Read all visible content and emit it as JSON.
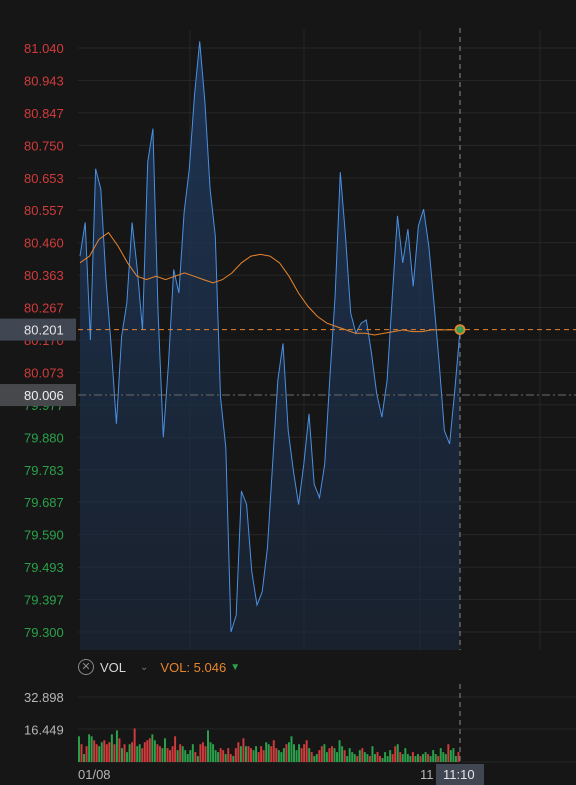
{
  "colors": {
    "background": "#161616",
    "grid": "#262626",
    "price_line": "#4a90e2",
    "avg_line": "#e7862c",
    "up": "#2aa14a",
    "down": "#d13b3b",
    "axis_text": "#b5b5b5"
  },
  "volume_panel": {
    "indicator_name": "VOL",
    "legend_label": "VOL:",
    "legend_value": "5.046",
    "close_icon": "close-circle-icon",
    "chevron_icon": "chevron-down-icon",
    "trend_icon": "triangle-down-icon"
  },
  "chart_data": [
    {
      "type": "line",
      "title": "",
      "price_ticks": [
        "81.040",
        "80.943",
        "80.847",
        "80.750",
        "80.653",
        "80.557",
        "80.460",
        "80.363",
        "80.267",
        "80.170",
        "80.073",
        "79.977",
        "79.880",
        "79.783",
        "79.687",
        "79.590",
        "79.493",
        "79.397",
        "79.300"
      ],
      "ylim": [
        79.3,
        81.04
      ],
      "reference_price": 80.006,
      "last_price": 80.201,
      "grid": true,
      "series": [
        {
          "values": [
            80.42,
            80.52,
            80.17,
            80.68,
            80.62,
            80.35,
            80.15,
            79.92,
            80.18,
            80.28,
            80.52,
            80.38,
            80.2,
            80.7,
            80.8,
            80.25,
            79.88,
            80.1,
            80.38,
            80.31,
            80.55,
            80.68,
            80.9,
            81.06,
            80.88,
            80.62,
            80.48,
            80.0,
            79.85,
            79.3,
            79.35,
            79.72,
            79.68,
            79.48,
            79.38,
            79.42,
            79.55,
            79.8,
            80.05,
            80.16,
            79.9,
            79.78,
            79.68,
            79.8,
            79.95,
            79.74,
            79.7,
            79.8,
            80.06,
            80.3,
            80.67,
            80.48,
            80.25,
            80.19,
            80.22,
            80.23,
            80.13,
            80.01,
            79.94,
            80.05,
            80.3,
            80.54,
            80.4,
            80.5,
            80.33,
            80.51,
            80.56,
            80.45,
            80.28,
            80.1,
            79.9,
            79.86,
            80.02,
            80.2
          ]
        },
        {
          "values": [
            80.4,
            80.42,
            80.47,
            80.49,
            80.45,
            80.4,
            80.36,
            80.35,
            80.36,
            80.35,
            80.36,
            80.37,
            80.36,
            80.35,
            80.34,
            80.35,
            80.37,
            80.4,
            80.42,
            80.425,
            80.42,
            80.4,
            80.36,
            80.31,
            80.27,
            80.24,
            80.22,
            80.21,
            80.2,
            80.19,
            80.19,
            80.185,
            80.19,
            80.195,
            80.2,
            80.195,
            80.195,
            80.2,
            80.2,
            80.2,
            80.2
          ]
        }
      ]
    },
    {
      "type": "bar",
      "title": "",
      "volume_ticks": [
        "32.898",
        "16.449"
      ],
      "ylim": [
        0,
        32.898
      ],
      "x_tick_labels": [
        "01/08",
        "11"
      ],
      "crosshair_time_label": "11:10",
      "series": [
        {
          "values": [
            13,
            9,
            4,
            8,
            14,
            13,
            11,
            9,
            8,
            10,
            11,
            9,
            10,
            14,
            9,
            16,
            12,
            7,
            9,
            5,
            9,
            10,
            17,
            8,
            9,
            7,
            10,
            11,
            12,
            14,
            11,
            9,
            8,
            7,
            12,
            7,
            6,
            8,
            13,
            6,
            9,
            8,
            6,
            4,
            6,
            9,
            5,
            3,
            9,
            10,
            8,
            16,
            10,
            9,
            6,
            5,
            7,
            6,
            4,
            7,
            4,
            3,
            7,
            10,
            8,
            12,
            8,
            8,
            7,
            6,
            8,
            5,
            8,
            6,
            10,
            9,
            8,
            11,
            7,
            6,
            5,
            7,
            9,
            10,
            13,
            9,
            6,
            9,
            7,
            9,
            11,
            7,
            5,
            3,
            4,
            6,
            8,
            9,
            5,
            7,
            8,
            7,
            5,
            11,
            8,
            6,
            3,
            7,
            5,
            4,
            3,
            6,
            7,
            5,
            4,
            3,
            8,
            4,
            5,
            3,
            2,
            5,
            3,
            6,
            4,
            8,
            9,
            5,
            4,
            7,
            4,
            3,
            5,
            3,
            4,
            3,
            4,
            5,
            4,
            3,
            6,
            4,
            3,
            7,
            5,
            4,
            9,
            6,
            7,
            3,
            5
          ],
          "directions": [
            "u",
            "d",
            "u",
            "d",
            "u",
            "u",
            "d",
            "d",
            "u",
            "u",
            "d",
            "d",
            "d",
            "u",
            "d",
            "u",
            "d",
            "u",
            "d",
            "u",
            "u",
            "d",
            "d",
            "u",
            "u",
            "d",
            "d",
            "d",
            "d",
            "u",
            "u",
            "d",
            "d",
            "u",
            "u",
            "d",
            "d",
            "d",
            "d",
            "u",
            "d",
            "u",
            "u",
            "u",
            "u",
            "u",
            "d",
            "u",
            "d",
            "d",
            "d",
            "u",
            "u",
            "u",
            "u",
            "u",
            "d",
            "d",
            "u",
            "d",
            "d",
            "u",
            "d",
            "d",
            "u",
            "d",
            "u",
            "d",
            "d",
            "u",
            "u",
            "d",
            "d",
            "d",
            "u",
            "u",
            "d",
            "d",
            "d",
            "u",
            "u",
            "u",
            "d",
            "u",
            "u",
            "u",
            "u",
            "u",
            "d",
            "d",
            "d",
            "u",
            "d",
            "u",
            "u",
            "d",
            "d",
            "u",
            "u",
            "d",
            "d",
            "u",
            "u",
            "u",
            "u",
            "d",
            "u",
            "u",
            "u",
            "u",
            "d",
            "u",
            "d",
            "u",
            "u",
            "d",
            "u",
            "u",
            "d",
            "d",
            "u",
            "u",
            "u",
            "u",
            "d",
            "d",
            "u",
            "d",
            "u",
            "u",
            "u",
            "u",
            "d",
            "u",
            "u",
            "d",
            "u",
            "u",
            "d",
            "u",
            "u",
            "u",
            "d",
            "u",
            "u",
            "u",
            "d",
            "u",
            "u",
            "u",
            "d"
          ]
        }
      ]
    }
  ]
}
